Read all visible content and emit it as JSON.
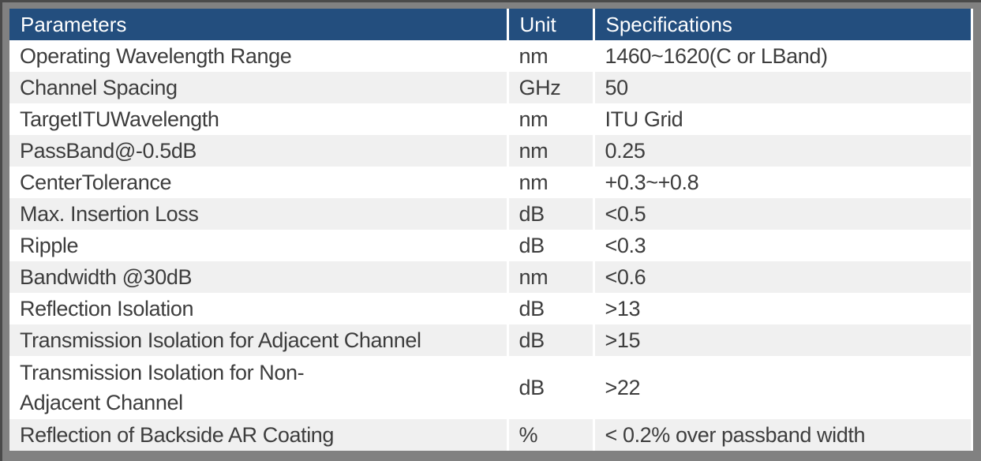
{
  "colors": {
    "header_bg": "#234E7E",
    "header_text": "#FFFFFF",
    "row_bg": "#FFFFFF",
    "row_alt_bg": "#F0F0F0",
    "text": "#3D3D3D",
    "frame_bg": "#818181",
    "frame_edge": "#4A4A4A",
    "separator": "#FFFFFF"
  },
  "table": {
    "columns": [
      {
        "label": "Parameters"
      },
      {
        "label": "Unit"
      },
      {
        "label": "Specifications"
      }
    ],
    "rows": [
      {
        "parameter": "Operating Wavelength Range",
        "unit": "nm",
        "specification": "1460~1620(C or LBand)"
      },
      {
        "parameter": "Channel Spacing",
        "unit": "GHz",
        "specification": "50"
      },
      {
        "parameter": "TargetITUWavelength",
        "unit": "nm",
        "specification": "ITU Grid"
      },
      {
        "parameter": "PassBand@-0.5dB",
        "unit": "nm",
        "specification": "0.25"
      },
      {
        "parameter": "CenterTolerance",
        "unit": "nm",
        "specification": "+0.3~+0.8"
      },
      {
        "parameter": "Max. Insertion Loss",
        "unit": "dB",
        "specification": "<0.5"
      },
      {
        "parameter": "Ripple",
        "unit": "dB",
        "specification": "<0.3"
      },
      {
        "parameter": "Bandwidth @30dB",
        "unit": "nm",
        "specification": "<0.6"
      },
      {
        "parameter": "Reflection Isolation",
        "unit": "dB",
        "specification": ">13"
      },
      {
        "parameter": "Transmission Isolation for Adjacent Channel",
        "unit": "dB",
        "specification": ">15"
      },
      {
        "parameter": "Transmission Isolation for Non-\nAdjacent Channel",
        "unit": "dB",
        "specification": ">22"
      },
      {
        "parameter": "Reflection of Backside AR Coating",
        "unit": "%",
        "specification": "< 0.2% over passband width"
      }
    ]
  }
}
